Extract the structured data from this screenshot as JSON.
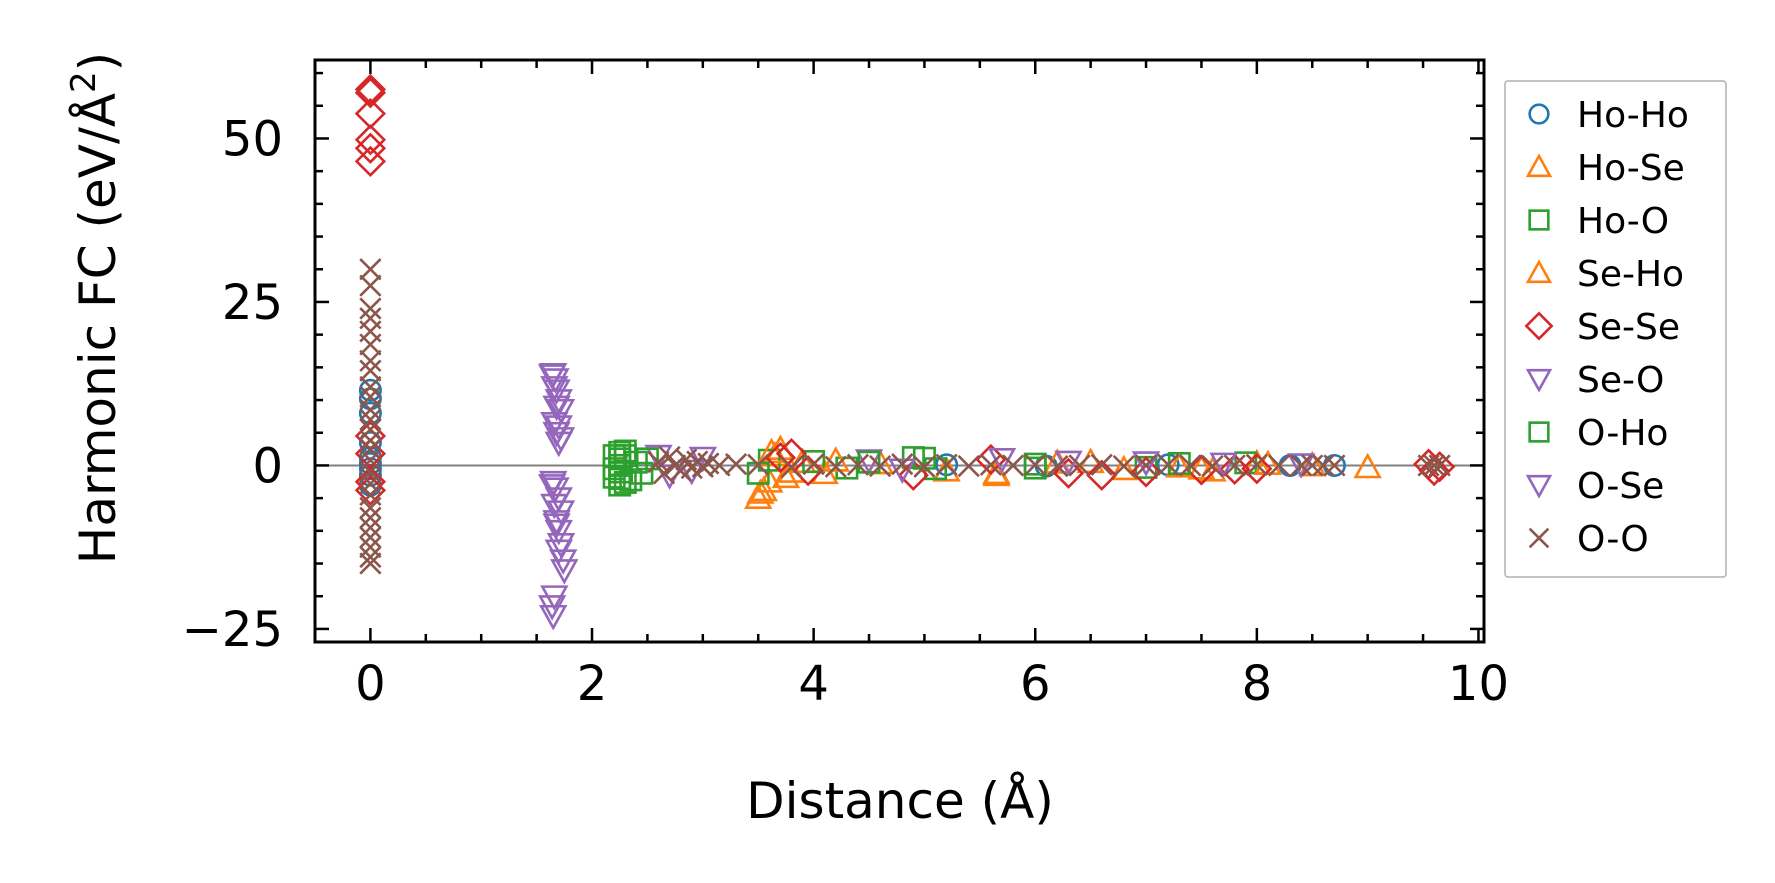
{
  "chart_data": {
    "type": "scatter",
    "title": "",
    "xlabel": "Distance (Å)",
    "ylabel_main": "Harmonic FC (eV/Å",
    "ylabel_sup": "2",
    "ylabel_close": ")",
    "xlim": [
      -0.5,
      10.05
    ],
    "ylim": [
      -27,
      62
    ],
    "x_ticks": [
      0,
      2,
      4,
      6,
      8,
      10
    ],
    "x_tick_labels": [
      "0",
      "2",
      "4",
      "6",
      "8",
      "10"
    ],
    "y_ticks": [
      -25,
      0,
      25,
      50
    ],
    "y_tick_labels": [
      "−25",
      "0",
      "25",
      "50"
    ],
    "zero_line": 0,
    "legend_position": "outside-right",
    "series": [
      {
        "name": "Ho-Ho",
        "marker": "circle",
        "color": "#1f77b4",
        "points": [
          [
            0,
            11.5
          ],
          [
            0,
            10.2
          ],
          [
            0,
            8.0
          ],
          [
            0,
            3.5
          ],
          [
            0,
            1.2
          ],
          [
            0,
            0.3
          ],
          [
            0,
            -0.5
          ],
          [
            0,
            -1.5
          ],
          [
            0,
            -3.0
          ],
          [
            5.2,
            0.1
          ],
          [
            6.1,
            -0.1
          ],
          [
            7.2,
            0.1
          ],
          [
            8.3,
            0.0
          ],
          [
            8.7,
            0.0
          ]
        ]
      },
      {
        "name": "Ho-Se",
        "marker": "triangle-up",
        "color": "#ff7f0e",
        "points": [
          [
            3.5,
            -5.0
          ],
          [
            3.55,
            -3.8
          ],
          [
            3.6,
            -2.5
          ],
          [
            3.65,
            1.5
          ],
          [
            3.7,
            2.5
          ],
          [
            3.8,
            -1.0
          ],
          [
            3.9,
            0.5
          ],
          [
            4.1,
            -1.2
          ],
          [
            4.6,
            0.3
          ],
          [
            5.2,
            -0.8
          ],
          [
            5.65,
            -1.5
          ],
          [
            6.2,
            0.4
          ],
          [
            6.8,
            -0.6
          ],
          [
            7.3,
            -0.2
          ],
          [
            7.6,
            -0.8
          ],
          [
            8.0,
            0.3
          ],
          [
            8.5,
            0.0
          ],
          [
            9.0,
            -0.3
          ]
        ]
      },
      {
        "name": "Ho-O",
        "marker": "square",
        "color": "#2ca02c",
        "points": [
          [
            2.25,
            2.0
          ],
          [
            2.25,
            1.0
          ],
          [
            2.25,
            0.0
          ],
          [
            2.25,
            -1.0
          ],
          [
            2.25,
            -2.0
          ],
          [
            2.25,
            -3.0
          ],
          [
            2.3,
            1.5
          ],
          [
            2.35,
            -2.2
          ],
          [
            2.4,
            0.5
          ],
          [
            2.45,
            -1.2
          ],
          [
            3.6,
            0.8
          ],
          [
            4.0,
            0.6
          ],
          [
            4.3,
            -0.4
          ],
          [
            4.9,
            1.2
          ],
          [
            5.1,
            -0.5
          ],
          [
            6.0,
            0.2
          ],
          [
            7.0,
            -0.3
          ],
          [
            7.9,
            0.4
          ]
        ]
      },
      {
        "name": "Se-Ho",
        "marker": "triangle-up",
        "color": "#ff7f0e",
        "points": [
          [
            3.52,
            -4.2
          ],
          [
            3.62,
            2.0
          ],
          [
            3.75,
            -1.8
          ],
          [
            4.2,
            0.7
          ],
          [
            5.65,
            -1.2
          ],
          [
            6.5,
            0.5
          ],
          [
            7.5,
            -0.5
          ],
          [
            8.1,
            0.2
          ]
        ]
      },
      {
        "name": "Se-Se",
        "marker": "diamond",
        "color": "#d62728",
        "points": [
          [
            0,
            57.5
          ],
          [
            0,
            57.0
          ],
          [
            0,
            53.8
          ],
          [
            0,
            49.8
          ],
          [
            0,
            48.5
          ],
          [
            0,
            46.5
          ],
          [
            0,
            4.5
          ],
          [
            0,
            1.8
          ],
          [
            0,
            -2.5
          ],
          [
            0,
            -3.8
          ],
          [
            3.7,
            1.2
          ],
          [
            3.8,
            1.8
          ],
          [
            3.95,
            -0.8
          ],
          [
            4.9,
            -1.5
          ],
          [
            5.6,
            0.9
          ],
          [
            6.3,
            -1.2
          ],
          [
            6.6,
            -1.5
          ],
          [
            7.0,
            -1.0
          ],
          [
            7.5,
            -0.7
          ],
          [
            7.8,
            -0.6
          ],
          [
            8.0,
            -0.5
          ],
          [
            9.55,
            0.2
          ],
          [
            9.6,
            -0.8
          ],
          [
            9.65,
            -0.2
          ]
        ]
      },
      {
        "name": "Se-O",
        "marker": "triangle-down",
        "color": "#9467bd",
        "points": [
          [
            1.65,
            14.0
          ],
          [
            1.67,
            13.2
          ],
          [
            1.68,
            11.5
          ],
          [
            1.7,
            10.0
          ],
          [
            1.72,
            8.5
          ],
          [
            1.66,
            6.5
          ],
          [
            1.68,
            5.0
          ],
          [
            1.7,
            3.5
          ],
          [
            1.65,
            -2.5
          ],
          [
            1.67,
            -3.5
          ],
          [
            1.7,
            -5.0
          ],
          [
            1.72,
            -7.0
          ],
          [
            1.68,
            -8.5
          ],
          [
            1.7,
            -10.0
          ],
          [
            1.72,
            -12.0
          ],
          [
            1.74,
            -14.5
          ],
          [
            1.75,
            -16.0
          ],
          [
            2.6,
            1.5
          ],
          [
            2.9,
            -0.8
          ],
          [
            4.5,
            0.8
          ],
          [
            5.7,
            1.0
          ],
          [
            7.0,
            0.5
          ],
          [
            8.4,
            0.2
          ]
        ]
      },
      {
        "name": "O-Ho",
        "marker": "square",
        "color": "#2ca02c",
        "points": [
          [
            2.2,
            1.5
          ],
          [
            2.2,
            -0.5
          ],
          [
            2.2,
            -1.8
          ],
          [
            2.3,
            2.2
          ],
          [
            2.3,
            -2.6
          ],
          [
            2.5,
            1.0
          ],
          [
            3.5,
            -1.2
          ],
          [
            4.5,
            0.5
          ],
          [
            5.0,
            1.1
          ],
          [
            6.0,
            -0.4
          ],
          [
            7.3,
            0.3
          ]
        ]
      },
      {
        "name": "O-Se",
        "marker": "triangle-down",
        "color": "#9467bd",
        "points": [
          [
            1.64,
            13.8
          ],
          [
            1.66,
            12.0
          ],
          [
            1.68,
            9.0
          ],
          [
            1.7,
            6.0
          ],
          [
            1.72,
            4.2
          ],
          [
            1.64,
            -3.0
          ],
          [
            1.66,
            -6.0
          ],
          [
            1.68,
            -9.0
          ],
          [
            1.7,
            -13.0
          ],
          [
            1.66,
            -20.0
          ],
          [
            1.64,
            -21.5
          ],
          [
            1.65,
            -23.0
          ],
          [
            2.7,
            -1.5
          ],
          [
            3.0,
            1.2
          ],
          [
            4.8,
            -0.6
          ],
          [
            6.3,
            0.6
          ],
          [
            7.7,
            0.3
          ]
        ]
      },
      {
        "name": "O-O",
        "marker": "x",
        "color": "#8c564b",
        "points": [
          [
            0,
            30.0
          ],
          [
            0,
            27.5
          ],
          [
            0,
            24.0
          ],
          [
            0,
            22.5
          ],
          [
            0,
            20.5
          ],
          [
            0,
            18.5
          ],
          [
            0,
            16.0
          ],
          [
            0,
            14.5
          ],
          [
            0,
            12.0
          ],
          [
            0,
            10.5
          ],
          [
            0,
            8.5
          ],
          [
            0,
            7.0
          ],
          [
            0,
            5.5
          ],
          [
            0,
            3.8
          ],
          [
            0,
            2.5
          ],
          [
            0,
            0.8
          ],
          [
            0,
            -1.0
          ],
          [
            0,
            -2.8
          ],
          [
            0,
            -4.5
          ],
          [
            0,
            -6.5
          ],
          [
            0,
            -8.0
          ],
          [
            0,
            -9.5
          ],
          [
            0,
            -11.0
          ],
          [
            0,
            -12.5
          ],
          [
            0,
            -14.0
          ],
          [
            0,
            -15.0
          ],
          [
            2.6,
            0.5
          ],
          [
            2.65,
            -1.2
          ],
          [
            2.7,
            1.3
          ],
          [
            2.75,
            0.0
          ],
          [
            2.8,
            -0.8
          ],
          [
            2.85,
            0.9
          ],
          [
            2.9,
            -0.4
          ],
          [
            2.95,
            0.6
          ],
          [
            3.0,
            -0.2
          ],
          [
            3.05,
            0.3
          ],
          [
            3.15,
            0.0
          ],
          [
            3.3,
            0.2
          ],
          [
            3.5,
            0.1
          ],
          [
            3.8,
            -0.3
          ],
          [
            4.0,
            0.2
          ],
          [
            4.2,
            -0.2
          ],
          [
            4.4,
            0.1
          ],
          [
            4.6,
            -0.1
          ],
          [
            4.8,
            0.2
          ],
          [
            5.0,
            -0.2
          ],
          [
            5.2,
            0.1
          ],
          [
            5.4,
            -0.1
          ],
          [
            5.6,
            0.1
          ],
          [
            5.8,
            0.0
          ],
          [
            6.0,
            0.1
          ],
          [
            6.2,
            -0.1
          ],
          [
            6.4,
            0.0
          ],
          [
            6.6,
            0.1
          ],
          [
            6.8,
            -0.1
          ],
          [
            7.0,
            0.0
          ],
          [
            7.2,
            0.1
          ],
          [
            7.4,
            0.0
          ],
          [
            7.6,
            -0.1
          ],
          [
            7.8,
            0.0
          ],
          [
            8.0,
            0.1
          ],
          [
            8.2,
            0.0
          ],
          [
            8.4,
            0.0
          ],
          [
            8.5,
            0.0
          ],
          [
            8.6,
            0.0
          ],
          [
            8.7,
            0.0
          ],
          [
            9.55,
            0.0
          ],
          [
            9.6,
            0.0
          ],
          [
            9.65,
            0.0
          ]
        ]
      }
    ],
    "legend": [
      {
        "label": "Ho-Ho",
        "marker": "circle",
        "color": "#1f77b4"
      },
      {
        "label": "Ho-Se",
        "marker": "triangle-up",
        "color": "#ff7f0e"
      },
      {
        "label": "Ho-O",
        "marker": "square",
        "color": "#2ca02c"
      },
      {
        "label": "Se-Ho",
        "marker": "triangle-up",
        "color": "#ff7f0e"
      },
      {
        "label": "Se-Se",
        "marker": "diamond",
        "color": "#d62728"
      },
      {
        "label": "Se-O",
        "marker": "triangle-down",
        "color": "#9467bd"
      },
      {
        "label": "O-Ho",
        "marker": "square",
        "color": "#2ca02c"
      },
      {
        "label": "O-Se",
        "marker": "triangle-down",
        "color": "#9467bd"
      },
      {
        "label": "O-O",
        "marker": "x",
        "color": "#8c564b"
      }
    ]
  }
}
